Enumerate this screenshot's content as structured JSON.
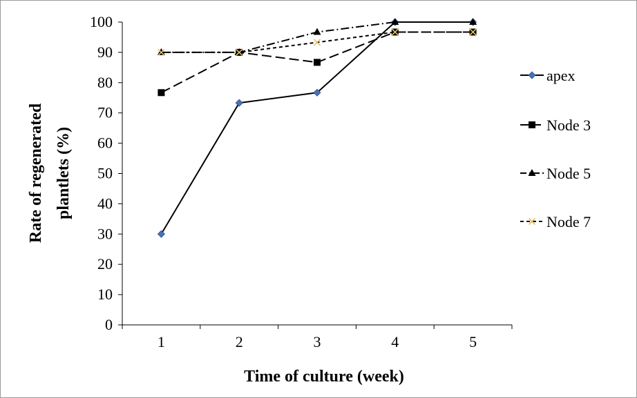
{
  "chart_data": {
    "type": "line",
    "title": "",
    "xlabel": "Time of culture (week)",
    "ylabel_lines": [
      "Rate of regenerated",
      "plantlets (%)"
    ],
    "categories": [
      "1",
      "2",
      "3",
      "4",
      "5"
    ],
    "ylim": [
      0,
      100
    ],
    "yticks": [
      "0",
      "10",
      "20",
      "30",
      "40",
      "50",
      "60",
      "70",
      "80",
      "90",
      "100"
    ],
    "grid": false,
    "legend_position": "right",
    "series": [
      {
        "name": "apex",
        "values": [
          30,
          73.3,
          76.7,
          100,
          100
        ],
        "color": "#000000",
        "marker_color": "#4a72b8",
        "marker": "diamond",
        "dash": "none"
      },
      {
        "name": "Node 3",
        "values": [
          76.7,
          90,
          86.7,
          96.7,
          96.7
        ],
        "color": "#000000",
        "marker_color": "#000000",
        "marker": "square",
        "dash": "long-dash"
      },
      {
        "name": "Node 5",
        "values": [
          90,
          90,
          96.7,
          100,
          100
        ],
        "color": "#000000",
        "marker_color": "#000000",
        "marker": "triangle",
        "dash": "dash-dot"
      },
      {
        "name": "Node 7",
        "values": [
          90,
          90,
          93.3,
          96.7,
          96.7
        ],
        "color": "#000000",
        "marker_color": "#e8c060",
        "marker": "x",
        "dash": "short-dash"
      }
    ]
  }
}
